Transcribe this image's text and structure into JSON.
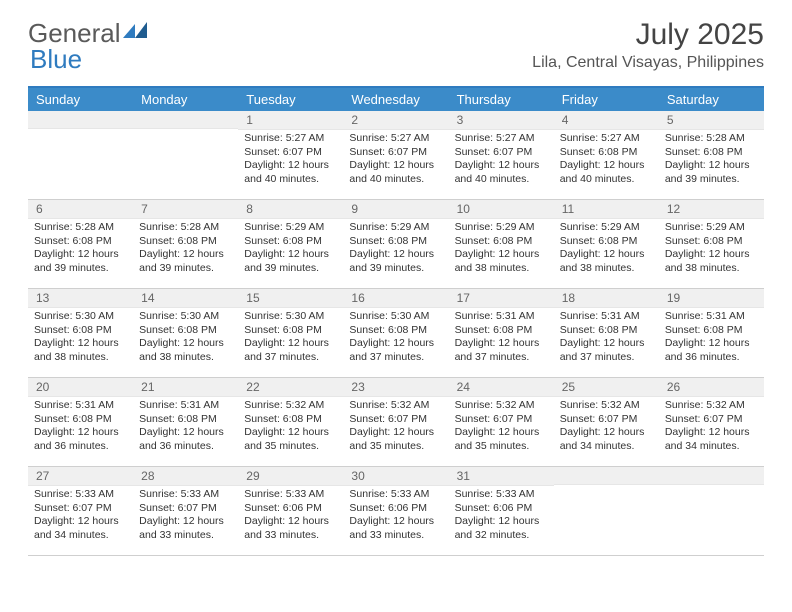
{
  "brand": {
    "part1": "General",
    "part2": "Blue",
    "color_primary": "#3b8bc9",
    "color_text": "#5a5a5a"
  },
  "title": {
    "month": "July 2025",
    "location": "Lila, Central Visayas, Philippines"
  },
  "style": {
    "header_bg": "#3b8bc9",
    "header_fg": "#ffffff",
    "daynum_bg": "#f0f0f0",
    "border_color": "#cfcfcf",
    "body_font_size": 10.5,
    "header_font_size": 13
  },
  "day_headers": [
    "Sunday",
    "Monday",
    "Tuesday",
    "Wednesday",
    "Thursday",
    "Friday",
    "Saturday"
  ],
  "weeks": [
    [
      null,
      null,
      {
        "n": 1,
        "sunrise": "5:27 AM",
        "sunset": "6:07 PM",
        "daylight": "12 hours and 40 minutes."
      },
      {
        "n": 2,
        "sunrise": "5:27 AM",
        "sunset": "6:07 PM",
        "daylight": "12 hours and 40 minutes."
      },
      {
        "n": 3,
        "sunrise": "5:27 AM",
        "sunset": "6:07 PM",
        "daylight": "12 hours and 40 minutes."
      },
      {
        "n": 4,
        "sunrise": "5:27 AM",
        "sunset": "6:08 PM",
        "daylight": "12 hours and 40 minutes."
      },
      {
        "n": 5,
        "sunrise": "5:28 AM",
        "sunset": "6:08 PM",
        "daylight": "12 hours and 39 minutes."
      }
    ],
    [
      {
        "n": 6,
        "sunrise": "5:28 AM",
        "sunset": "6:08 PM",
        "daylight": "12 hours and 39 minutes."
      },
      {
        "n": 7,
        "sunrise": "5:28 AM",
        "sunset": "6:08 PM",
        "daylight": "12 hours and 39 minutes."
      },
      {
        "n": 8,
        "sunrise": "5:29 AM",
        "sunset": "6:08 PM",
        "daylight": "12 hours and 39 minutes."
      },
      {
        "n": 9,
        "sunrise": "5:29 AM",
        "sunset": "6:08 PM",
        "daylight": "12 hours and 39 minutes."
      },
      {
        "n": 10,
        "sunrise": "5:29 AM",
        "sunset": "6:08 PM",
        "daylight": "12 hours and 38 minutes."
      },
      {
        "n": 11,
        "sunrise": "5:29 AM",
        "sunset": "6:08 PM",
        "daylight": "12 hours and 38 minutes."
      },
      {
        "n": 12,
        "sunrise": "5:29 AM",
        "sunset": "6:08 PM",
        "daylight": "12 hours and 38 minutes."
      }
    ],
    [
      {
        "n": 13,
        "sunrise": "5:30 AM",
        "sunset": "6:08 PM",
        "daylight": "12 hours and 38 minutes."
      },
      {
        "n": 14,
        "sunrise": "5:30 AM",
        "sunset": "6:08 PM",
        "daylight": "12 hours and 38 minutes."
      },
      {
        "n": 15,
        "sunrise": "5:30 AM",
        "sunset": "6:08 PM",
        "daylight": "12 hours and 37 minutes."
      },
      {
        "n": 16,
        "sunrise": "5:30 AM",
        "sunset": "6:08 PM",
        "daylight": "12 hours and 37 minutes."
      },
      {
        "n": 17,
        "sunrise": "5:31 AM",
        "sunset": "6:08 PM",
        "daylight": "12 hours and 37 minutes."
      },
      {
        "n": 18,
        "sunrise": "5:31 AM",
        "sunset": "6:08 PM",
        "daylight": "12 hours and 37 minutes."
      },
      {
        "n": 19,
        "sunrise": "5:31 AM",
        "sunset": "6:08 PM",
        "daylight": "12 hours and 36 minutes."
      }
    ],
    [
      {
        "n": 20,
        "sunrise": "5:31 AM",
        "sunset": "6:08 PM",
        "daylight": "12 hours and 36 minutes."
      },
      {
        "n": 21,
        "sunrise": "5:31 AM",
        "sunset": "6:08 PM",
        "daylight": "12 hours and 36 minutes."
      },
      {
        "n": 22,
        "sunrise": "5:32 AM",
        "sunset": "6:08 PM",
        "daylight": "12 hours and 35 minutes."
      },
      {
        "n": 23,
        "sunrise": "5:32 AM",
        "sunset": "6:07 PM",
        "daylight": "12 hours and 35 minutes."
      },
      {
        "n": 24,
        "sunrise": "5:32 AM",
        "sunset": "6:07 PM",
        "daylight": "12 hours and 35 minutes."
      },
      {
        "n": 25,
        "sunrise": "5:32 AM",
        "sunset": "6:07 PM",
        "daylight": "12 hours and 34 minutes."
      },
      {
        "n": 26,
        "sunrise": "5:32 AM",
        "sunset": "6:07 PM",
        "daylight": "12 hours and 34 minutes."
      }
    ],
    [
      {
        "n": 27,
        "sunrise": "5:33 AM",
        "sunset": "6:07 PM",
        "daylight": "12 hours and 34 minutes."
      },
      {
        "n": 28,
        "sunrise": "5:33 AM",
        "sunset": "6:07 PM",
        "daylight": "12 hours and 33 minutes."
      },
      {
        "n": 29,
        "sunrise": "5:33 AM",
        "sunset": "6:06 PM",
        "daylight": "12 hours and 33 minutes."
      },
      {
        "n": 30,
        "sunrise": "5:33 AM",
        "sunset": "6:06 PM",
        "daylight": "12 hours and 33 minutes."
      },
      {
        "n": 31,
        "sunrise": "5:33 AM",
        "sunset": "6:06 PM",
        "daylight": "12 hours and 32 minutes."
      },
      null,
      null
    ]
  ],
  "labels": {
    "sunrise": "Sunrise:",
    "sunset": "Sunset:",
    "daylight": "Daylight:"
  }
}
